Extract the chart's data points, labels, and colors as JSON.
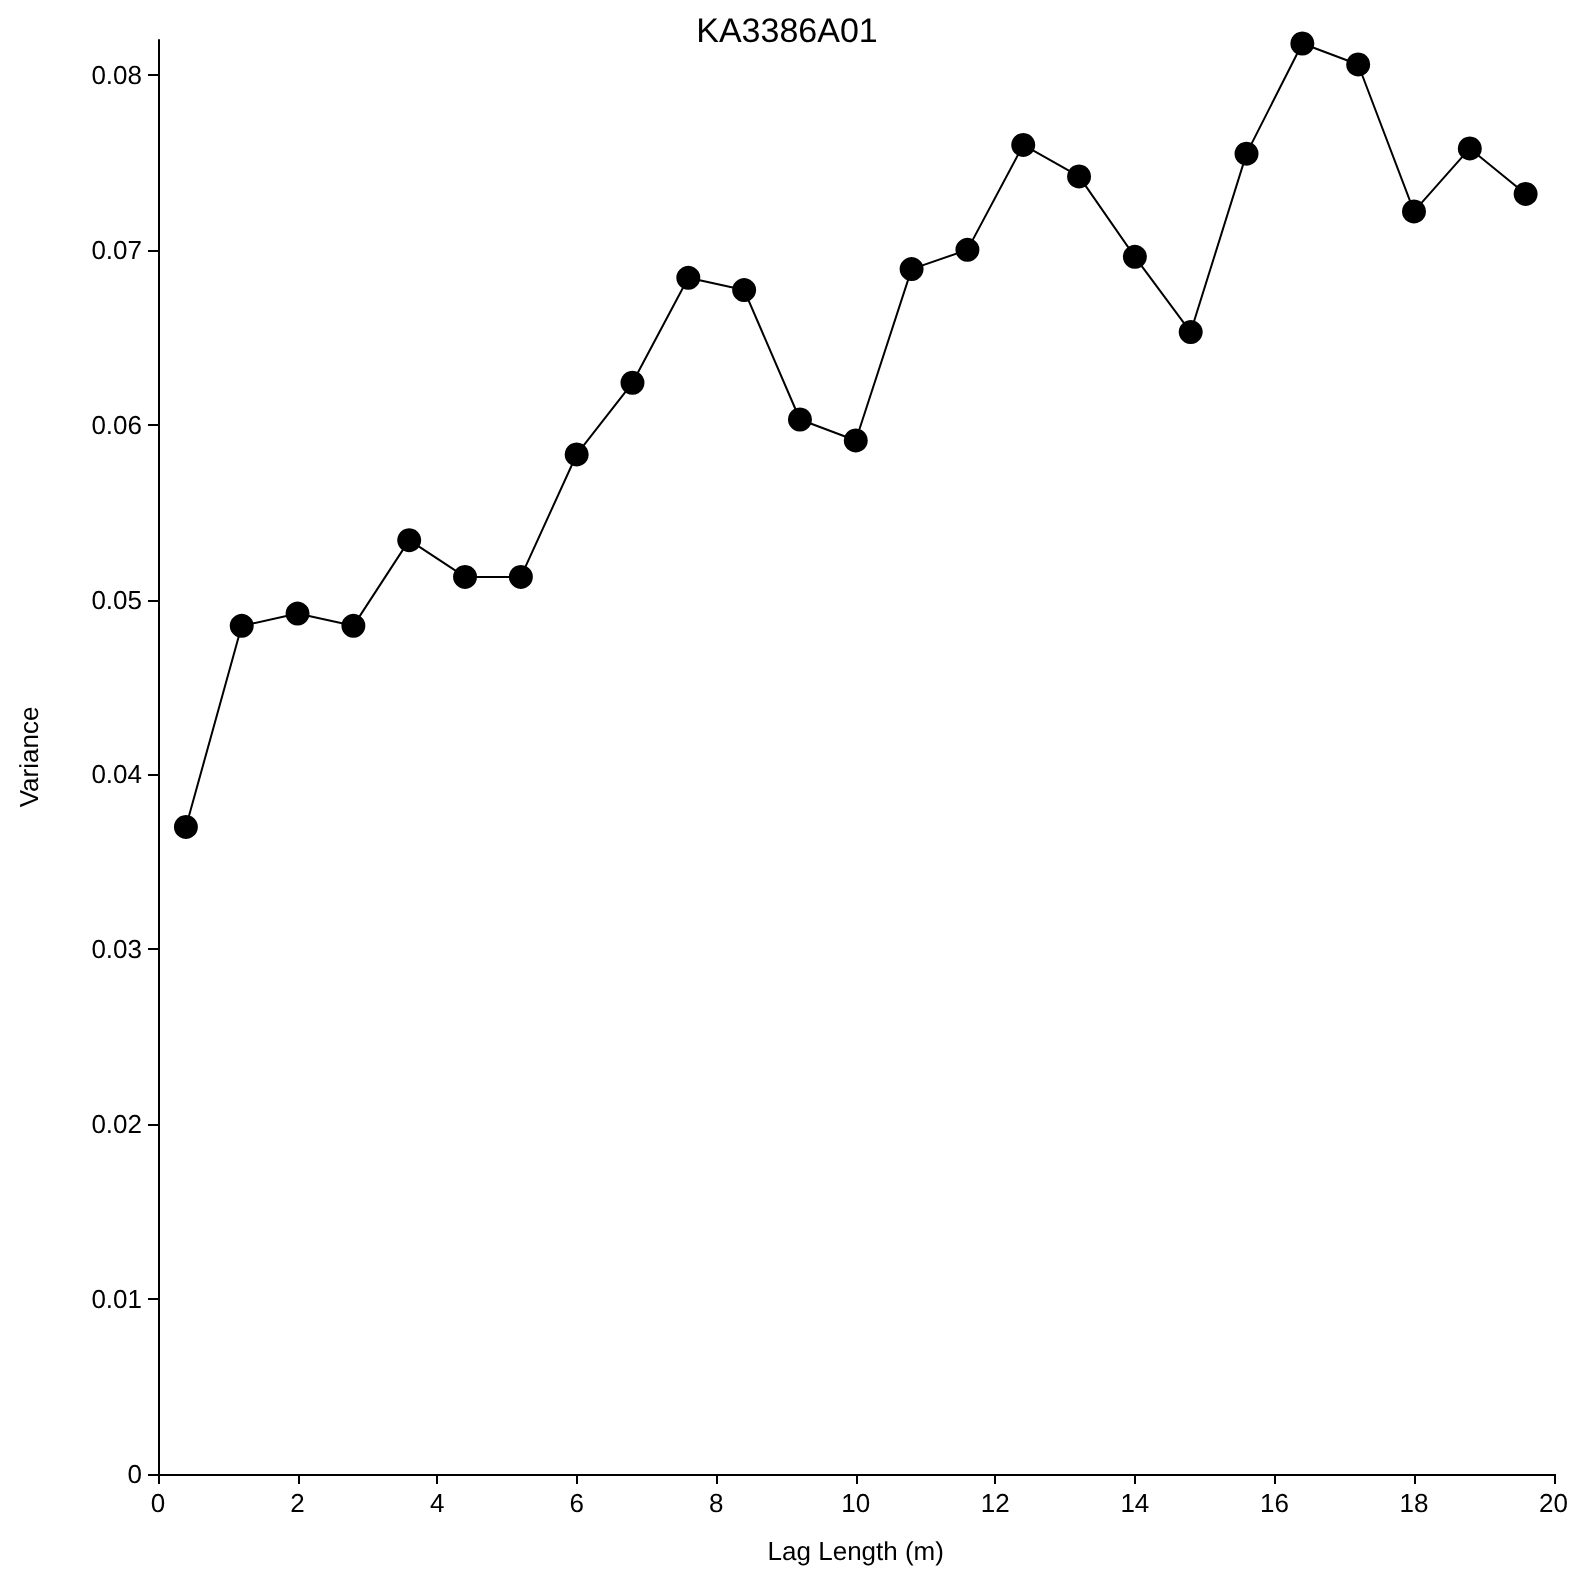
{
  "chart_data": {
    "type": "line",
    "title": "KA3386A01",
    "xlabel": "Lag Length (m)",
    "ylabel": "Variance",
    "x": [
      0.4,
      1.2,
      2.0,
      2.8,
      3.6,
      4.4,
      5.2,
      6.0,
      6.8,
      7.6,
      8.4,
      9.2,
      10.0,
      10.8,
      11.6,
      12.4,
      13.2,
      14.0,
      14.8,
      15.6,
      16.4,
      17.2,
      18.0,
      18.8,
      19.6
    ],
    "series": [
      {
        "color": "#000000",
        "values": [
          0.037,
          0.0485,
          0.0492,
          0.0485,
          0.0534,
          0.0513,
          0.0513,
          0.0583,
          0.0624,
          0.0684,
          0.0677,
          0.0603,
          0.0591,
          0.0689,
          0.07,
          0.076,
          0.0742,
          0.0696,
          0.0653,
          0.0755,
          0.0818,
          0.0806,
          0.0722,
          0.0758,
          0.0732
        ]
      }
    ],
    "xlim": [
      0,
      20
    ],
    "xticks": [
      0,
      2,
      4,
      6,
      8,
      10,
      12,
      14,
      16,
      18,
      20
    ],
    "ylim": [
      0,
      0.082
    ],
    "yticks": [
      0,
      0.01,
      0.02,
      0.03,
      0.04,
      0.05,
      0.06,
      0.07,
      0.08
    ],
    "grid": false,
    "marker": "circle",
    "line_style": "solid"
  }
}
